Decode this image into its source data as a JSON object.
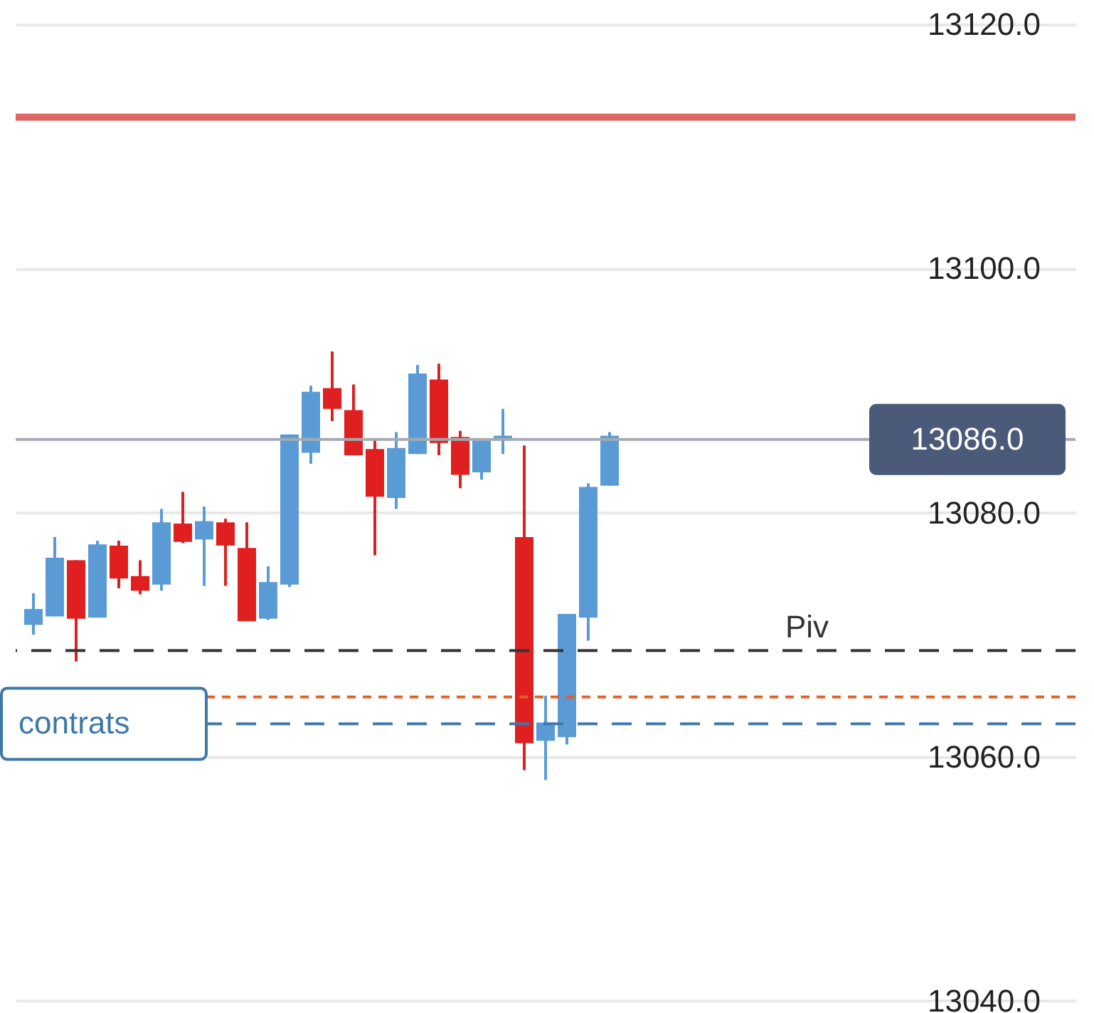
{
  "chart_data": {
    "type": "candlestick",
    "categories": [
      null,
      null,
      null,
      null,
      null,
      null,
      null,
      null,
      null,
      null,
      null,
      null,
      null,
      null,
      null,
      null,
      null,
      null,
      null,
      null,
      null,
      null,
      null,
      null,
      null,
      null,
      null,
      null,
      null,
      null,
      null,
      null,
      null,
      null,
      null,
      null,
      null,
      null,
      null,
      null,
      null,
      null,
      null,
      null,
      null,
      null,
      null,
      null,
      null
    ],
    "ohlc": [
      [
        13070.8,
        13073.4,
        13070.0,
        13072.1
      ],
      [
        13071.5,
        13078.0,
        13071.5,
        13076.3
      ],
      [
        13076.1,
        13076.1,
        13067.8,
        13071.3
      ],
      [
        13071.4,
        13077.7,
        13071.4,
        13077.4
      ],
      [
        13077.3,
        13077.7,
        13073.8,
        13074.6
      ],
      [
        13074.8,
        13076.1,
        13073.3,
        13073.6
      ],
      [
        13074.1,
        13080.3,
        13073.6,
        13079.2
      ],
      [
        13079.1,
        13081.7,
        13077.5,
        13077.6
      ],
      [
        13077.8,
        13080.5,
        13074.0,
        13079.3
      ],
      [
        13079.2,
        13079.5,
        13074.0,
        13077.3
      ],
      [
        13077.1,
        13079.2,
        13071.1,
        13071.1
      ],
      [
        13071.3,
        13075.6,
        13071.2,
        13074.3
      ],
      [
        13074.1,
        13086.4,
        13073.9,
        13086.4
      ],
      [
        13084.9,
        13090.4,
        13084.0,
        13089.9
      ],
      [
        13090.2,
        13093.2,
        13087.5,
        13088.5
      ],
      [
        13088.4,
        13090.5,
        13084.7,
        13084.7
      ],
      [
        13085.2,
        13086.0,
        13076.5,
        13081.3
      ],
      [
        13081.2,
        13086.6,
        13080.3,
        13085.3
      ],
      [
        13084.8,
        13092.1,
        13084.8,
        13091.4
      ],
      [
        13090.9,
        13092.2,
        13084.7,
        13085.7
      ],
      [
        13086.2,
        13086.7,
        13082.0,
        13083.1
      ],
      [
        13083.3,
        13085.9,
        13082.7,
        13085.9
      ],
      [
        13085.9,
        13088.5,
        13084.8,
        13086.3
      ],
      [
        13078.0,
        13085.5,
        13058.9,
        13061.1
      ],
      [
        13061.3,
        13065.0,
        13058.1,
        13062.8
      ],
      [
        13061.6,
        13071.7,
        13061.0,
        13071.7
      ],
      [
        13071.4,
        13082.4,
        13069.5,
        13082.1
      ],
      [
        13082.2,
        13086.6,
        13082.2,
        13086.3
      ],
      null,
      null,
      null,
      null,
      null,
      null,
      null,
      null,
      null,
      null,
      null,
      null,
      null,
      null,
      null,
      null,
      null,
      null,
      null,
      null,
      null
    ],
    "colors": [
      "#5b9bd5",
      "#5b9bd5",
      "#e02020",
      "#5b9bd5",
      "#e02020",
      "#e02020",
      "#5b9bd5",
      "#e02020",
      "#5b9bd5",
      "#e02020",
      "#e02020",
      "#5b9bd5",
      "#5b9bd5",
      "#5b9bd5",
      "#e02020",
      "#e02020",
      "#e02020",
      "#5b9bd5",
      "#5b9bd5",
      "#e02020",
      "#e02020",
      "#5b9bd5",
      "#5b9bd5",
      "#e02020",
      "#5b9bd5",
      "#5b9bd5",
      "#5b9bd5",
      "#5b9bd5",
      null,
      null,
      null,
      null,
      null,
      null,
      null,
      null,
      null,
      null,
      null,
      null,
      null,
      null,
      null,
      null,
      null,
      null,
      null,
      null,
      null
    ],
    "ylim": [
      13039,
      13122
    ],
    "yticks": [
      {
        "value": 13040,
        "label": "13040.0"
      },
      {
        "value": 13060,
        "label": "13060.0"
      },
      {
        "value": 13080,
        "label": "13080.0"
      },
      {
        "value": 13100,
        "label": "13100.0"
      },
      {
        "value": 13120,
        "label": "13120.0"
      }
    ],
    "grid": "y",
    "ref_lines": [
      {
        "axis": "y",
        "value": 13112.4,
        "color": "#e06666",
        "line_style": "solid"
      },
      {
        "axis": "y",
        "value": 13086,
        "label": "13086.0",
        "color": "#a3aab2",
        "line_style": "solid"
      },
      {
        "axis": "y",
        "value": 13068.7,
        "label": "Piv",
        "color": "#333333",
        "line_style": "dashed"
      },
      {
        "axis": "y",
        "value": 13064.9,
        "color": "#e0622a",
        "line_style": "dotted"
      },
      {
        "axis": "y",
        "value": 13062.7,
        "label": "contrats",
        "color": "#3e78a8",
        "line_style": "dashed"
      }
    ]
  }
}
